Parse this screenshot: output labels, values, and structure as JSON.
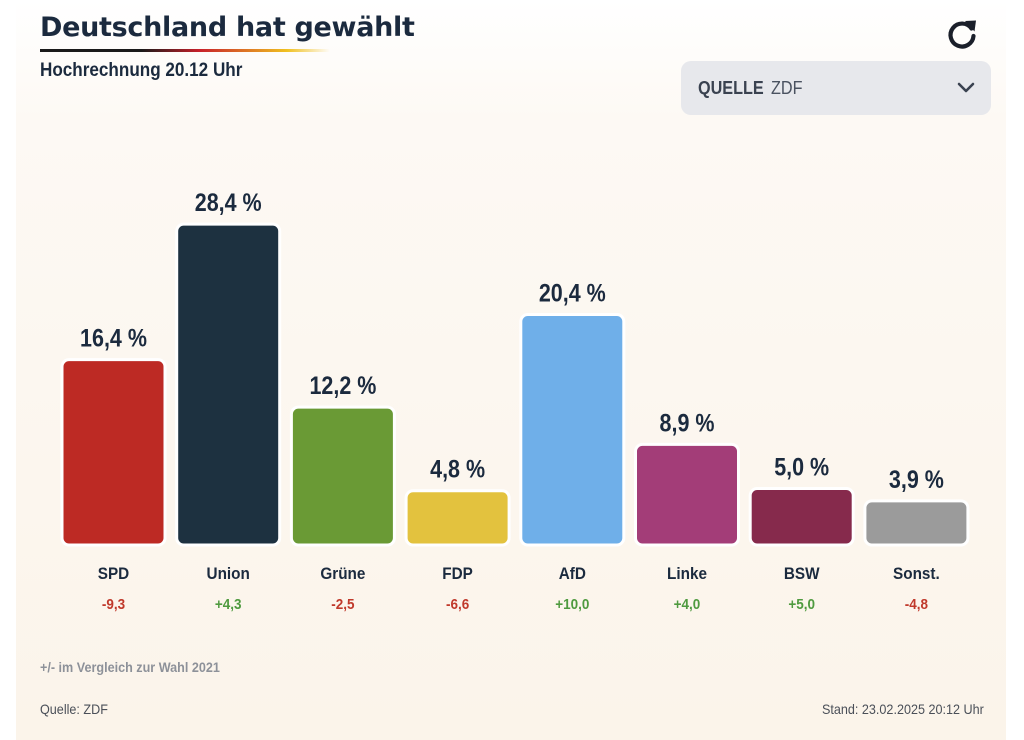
{
  "header": {
    "title": "Deutschland hat gewählt",
    "subtitle": "Hochrechnung 20.12 Uhr",
    "refresh_icon": "refresh-icon"
  },
  "source_select": {
    "label": "QUELLE",
    "value": "ZDF",
    "icon": "chevron-down-icon"
  },
  "chart_data": {
    "type": "bar",
    "categories": [
      "SPD",
      "Union",
      "Grüne",
      "FDP",
      "AfD",
      "Linke",
      "BSW",
      "Sonst."
    ],
    "values": [
      16.4,
      28.4,
      12.2,
      4.8,
      20.4,
      8.9,
      5.0,
      3.9
    ],
    "value_labels": [
      "16,4 %",
      "28,4 %",
      "12,2 %",
      "4,8 %",
      "20,4 %",
      "8,9 %",
      "5,0 %",
      "3,9 %"
    ],
    "changes": [
      -9.3,
      4.3,
      -2.5,
      -6.6,
      10.0,
      4.0,
      5.0,
      -4.8
    ],
    "change_labels": [
      "-9,3",
      "+4,3",
      "-2,5",
      "-6,6",
      "+10,0",
      "+4,0",
      "+5,0",
      "-4,8"
    ],
    "colors": [
      "#bd2a24",
      "#1d3140",
      "#6a9a35",
      "#e3c23e",
      "#6fafe9",
      "#a33d78",
      "#862a4c",
      "#9b9b9b"
    ],
    "change_colors": {
      "positive": "#4f9a3f",
      "negative": "#c0392b"
    },
    "grid": false,
    "legend": "none"
  },
  "footer": {
    "note": "+/- im Vergleich zur Wahl 2021",
    "source": "Quelle: ZDF",
    "stand": "Stand: 23.02.2025 20:12 Uhr"
  }
}
